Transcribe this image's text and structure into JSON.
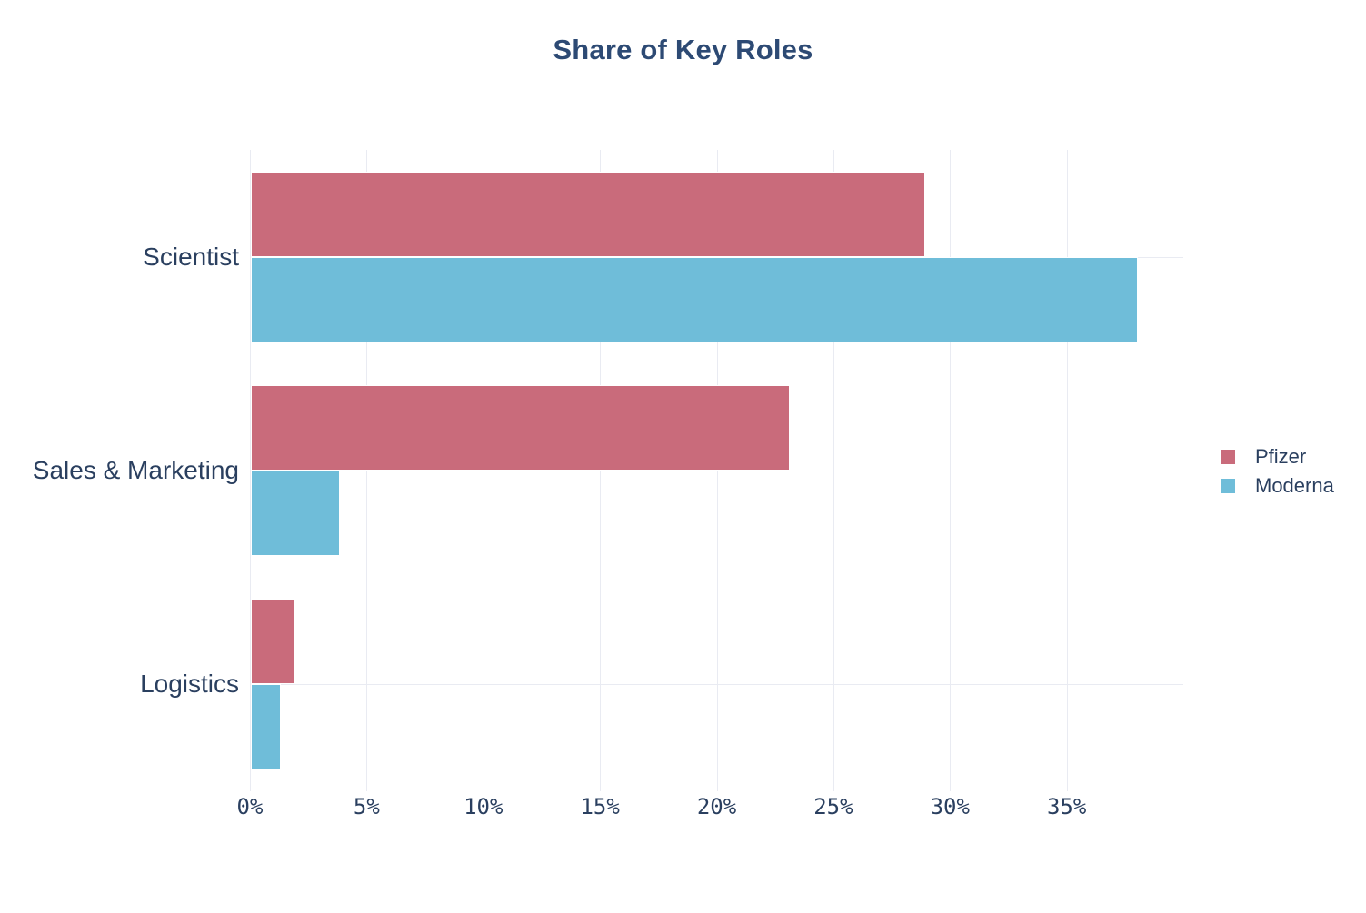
{
  "title": "Share of Key Roles",
  "chart_data": {
    "type": "bar",
    "orientation": "horizontal",
    "title": "Share of Key Roles",
    "categories": [
      "Scientist",
      "Sales & Marketing",
      "Logistics"
    ],
    "series": [
      {
        "name": "Pfizer",
        "color": "#c96b7b",
        "values": [
          28.9,
          23.1,
          1.9
        ]
      },
      {
        "name": "Moderna",
        "color": "#6fbdd9",
        "values": [
          38.0,
          3.8,
          1.3
        ]
      }
    ],
    "value_unit": "%",
    "xlabel": "",
    "ylabel": "",
    "xlim": [
      0,
      40
    ],
    "x_ticks": [
      {
        "value": 0,
        "label": "0%"
      },
      {
        "value": 5,
        "label": "5%"
      },
      {
        "value": 10,
        "label": "10%"
      },
      {
        "value": 15,
        "label": "15%"
      },
      {
        "value": 20,
        "label": "20%"
      },
      {
        "value": 25,
        "label": "25%"
      },
      {
        "value": 30,
        "label": "30%"
      },
      {
        "value": 35,
        "label": "35%"
      }
    ],
    "grid": true,
    "legend_position": "right"
  },
  "colors": {
    "pfizer": "#c96b7b",
    "moderna": "#6fbdd9",
    "text": "#2a3f5f",
    "title_text": "#2d4a74",
    "gridline": "#e9ebf2",
    "background": "#ffffff"
  }
}
